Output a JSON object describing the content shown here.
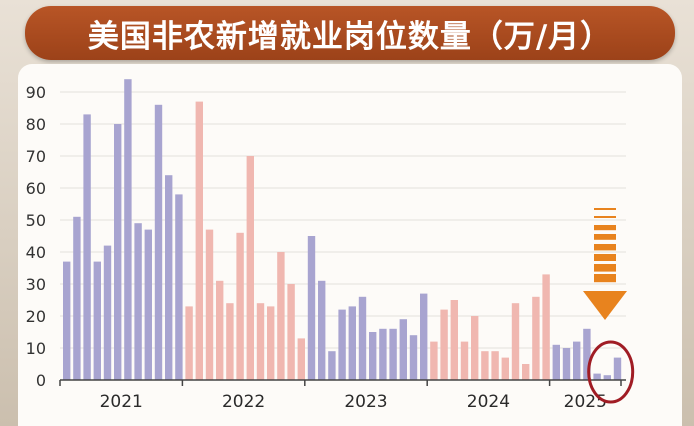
{
  "title": "美国非农新增就业岗位数量（万/月）",
  "colors": {
    "purple": "#a8a4d0",
    "pink": "#f0b7b0",
    "arrow": "#e8831e",
    "circle": "#a01c24",
    "banner": "#a9491e"
  },
  "chart_data": {
    "type": "bar",
    "title": "美国非农新增就业岗位数量（万/月）",
    "xlabel": "",
    "ylabel": "",
    "ylim": [
      0,
      95
    ],
    "yticks": [
      0,
      10,
      20,
      30,
      40,
      50,
      60,
      70,
      80,
      90
    ],
    "grid": true,
    "years": [
      {
        "label": "2021",
        "color": "purple",
        "values": [
          37,
          51,
          83,
          37,
          42,
          80,
          94,
          49,
          47,
          86,
          64,
          58
        ]
      },
      {
        "label": "2022",
        "color": "pink",
        "values": [
          23,
          87,
          47,
          31,
          24,
          46,
          70,
          24,
          23,
          40,
          30,
          13
        ]
      },
      {
        "label": "2023",
        "color": "purple",
        "values": [
          45,
          31,
          9,
          22,
          23,
          26,
          15,
          16,
          16,
          19,
          14,
          27
        ]
      },
      {
        "label": "2024",
        "color": "pink",
        "values": [
          12,
          22,
          25,
          12,
          20,
          9,
          9,
          7,
          24,
          5,
          26,
          33
        ]
      },
      {
        "label": "2025",
        "color": "purple",
        "values": [
          11,
          10,
          12,
          16,
          2,
          1.5,
          7
        ]
      }
    ],
    "annotations": [
      "arrow-down-2025",
      "circle-2025-recent"
    ]
  }
}
